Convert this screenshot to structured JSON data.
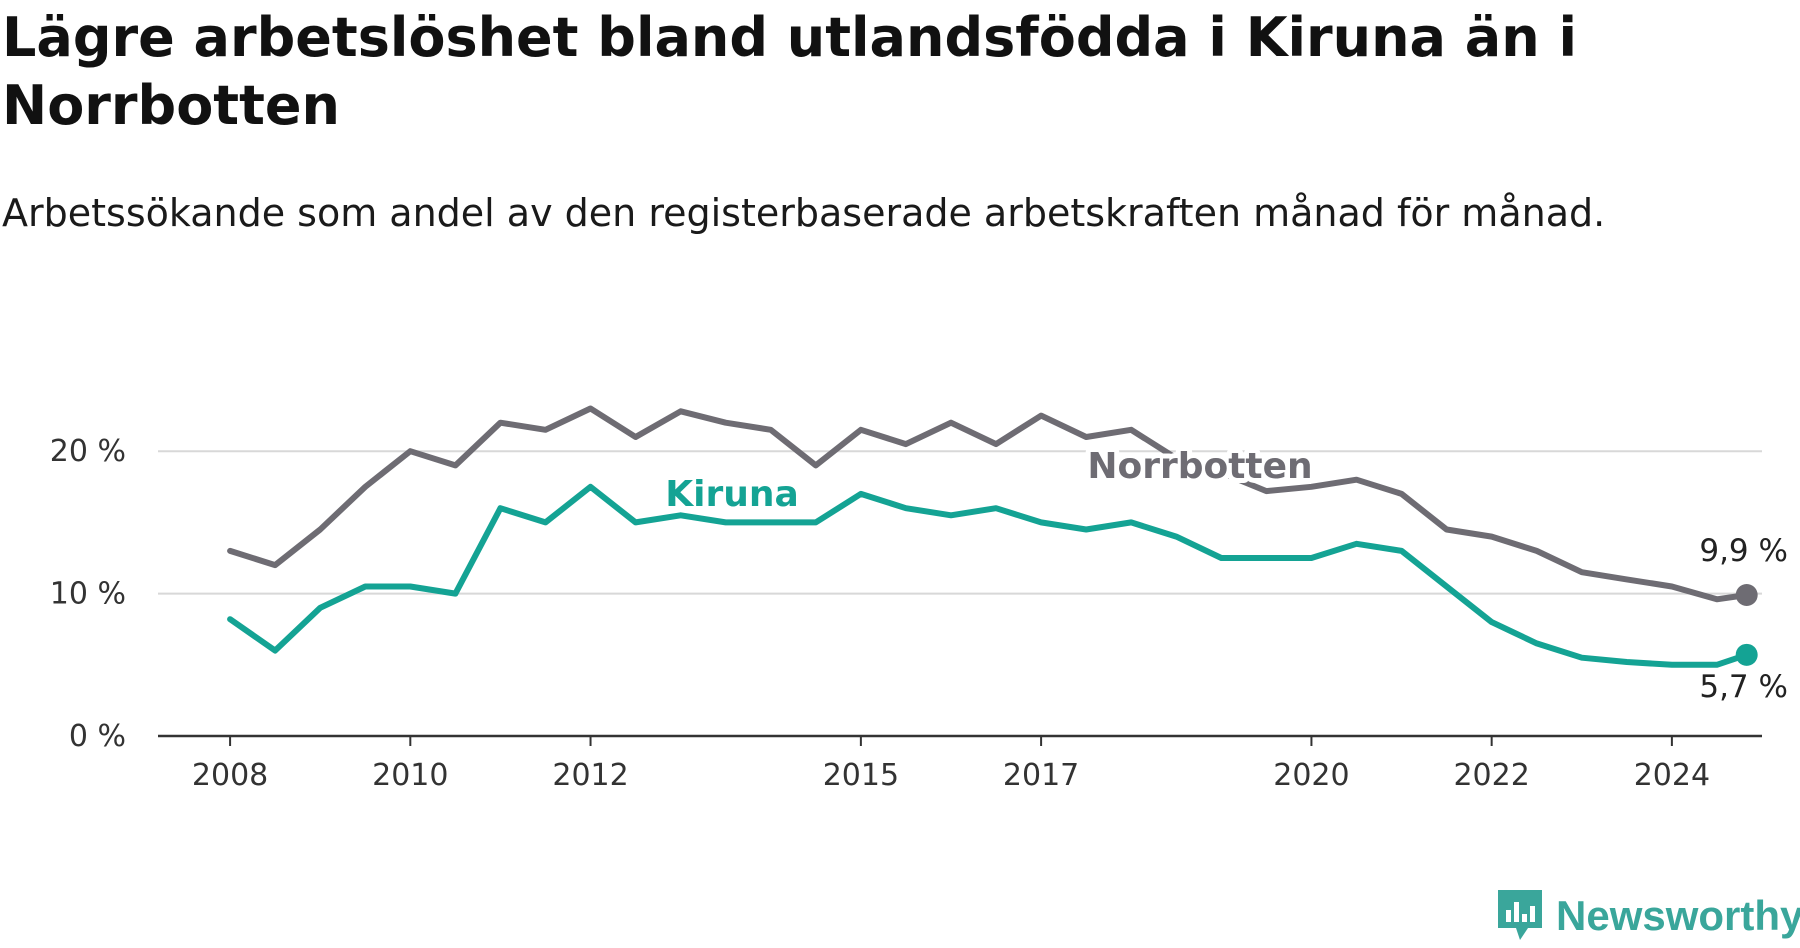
{
  "title": "Lägre arbetslöshet bland utlandsfödda i Kiruna än i Norrbotten",
  "subtitle": "Arbetssökande som andel av den registerbaserade arbetskraften månad för månad.",
  "brand": {
    "name": "Newsworthy",
    "icon": "newsworthy-logo-icon",
    "color": "#3aa69b"
  },
  "colors": {
    "kiruna": "#14a394",
    "norrbotten": "#6e6c73",
    "grid": "#d8d8d8",
    "axis": "#333333"
  },
  "chart_data": {
    "type": "line",
    "x_ticks": [
      "2008",
      "2010",
      "2012",
      "2015",
      "2017",
      "2020",
      "2022",
      "2024"
    ],
    "y_ticks": [
      "0 %",
      "10 %",
      "20 %"
    ],
    "ylim": [
      0,
      25
    ],
    "grid": true,
    "series": [
      {
        "name": "Norrbotten",
        "color": "#6e6c73",
        "end_label": "9,9 %",
        "x": [
          2008.0,
          2008.5,
          2009.0,
          2009.5,
          2010.0,
          2010.5,
          2011.0,
          2011.5,
          2012.0,
          2012.5,
          2013.0,
          2013.5,
          2014.0,
          2014.5,
          2015.0,
          2015.5,
          2016.0,
          2016.5,
          2017.0,
          2017.5,
          2018.0,
          2018.5,
          2019.0,
          2019.5,
          2020.0,
          2020.5,
          2021.0,
          2021.5,
          2022.0,
          2022.5,
          2023.0,
          2023.5,
          2024.0,
          2024.5,
          2024.83
        ],
        "values": [
          13.0,
          12.0,
          14.5,
          17.5,
          20.0,
          19.0,
          22.0,
          21.5,
          23.0,
          21.0,
          22.8,
          22.0,
          21.5,
          19.0,
          21.5,
          20.5,
          22.0,
          20.5,
          22.5,
          21.0,
          21.5,
          19.5,
          18.5,
          17.2,
          17.5,
          18.0,
          17.0,
          14.5,
          14.0,
          13.0,
          11.5,
          11.0,
          10.5,
          9.6,
          9.9
        ]
      },
      {
        "name": "Kiruna",
        "color": "#14a394",
        "end_label": "5,7 %",
        "x": [
          2008.0,
          2008.5,
          2009.0,
          2009.5,
          2010.0,
          2010.5,
          2011.0,
          2011.5,
          2012.0,
          2012.5,
          2013.0,
          2013.5,
          2014.0,
          2014.5,
          2015.0,
          2015.5,
          2016.0,
          2016.5,
          2017.0,
          2017.5,
          2018.0,
          2018.5,
          2019.0,
          2019.5,
          2020.0,
          2020.5,
          2021.0,
          2021.5,
          2022.0,
          2022.5,
          2023.0,
          2023.5,
          2024.0,
          2024.5,
          2024.83
        ],
        "values": [
          8.2,
          6.0,
          9.0,
          10.5,
          10.5,
          10.0,
          16.0,
          15.0,
          17.5,
          15.0,
          15.5,
          15.0,
          15.0,
          15.0,
          17.0,
          16.0,
          15.5,
          16.0,
          15.0,
          14.5,
          15.0,
          14.0,
          12.5,
          12.5,
          12.5,
          13.5,
          13.0,
          10.5,
          8.0,
          6.5,
          5.5,
          5.2,
          5.0,
          5.0,
          5.7
        ]
      }
    ]
  }
}
